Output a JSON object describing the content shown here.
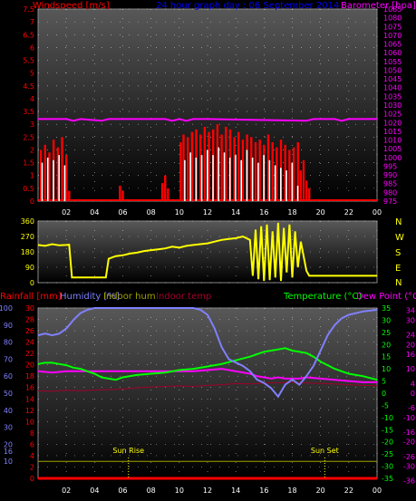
{
  "header": {
    "windspeed_label": "Windspeed [m/s]",
    "date_title": "24 hour graph day : 06 September 2014",
    "barometer_label": "Barometer [hpa]"
  },
  "direction_letters": [
    "N",
    "W",
    "S",
    "E",
    "N"
  ],
  "footer_labels": {
    "rainfall": "Rainfall [mm]",
    "humidity": "Humidity [%]",
    "indoor_hum": "Indoor hum",
    "indoor_temp": "Indoor temp",
    "temperature": "Temperature (°C)",
    "dew_point": "Dew Point (°C)"
  },
  "events": {
    "sunrise": "Sun Rise",
    "sunset": "Sun Set"
  },
  "colors": {
    "wind_avg": "#ff0000",
    "wind_gust": "#ffffff",
    "barometer": "#ff00ff",
    "direction": "#ffff00",
    "humidity": "#8080ff",
    "temperature": "#00ff00",
    "dewpoint": "#ff00ff",
    "indoor_temp": "#a0002a",
    "indoor_hum": "#a0a000",
    "rain": "#ff0000",
    "title": "#0000ff",
    "panel_top": "#555555",
    "panel_bottom": "#000000"
  },
  "chart_data": [
    {
      "type": "bar",
      "title": "24 hour graph day : 06 September 2014",
      "xlabel": "",
      "x_ticks": [
        "02",
        "04",
        "06",
        "08",
        "10",
        "12",
        "14",
        "16",
        "18",
        "20",
        "22",
        "00"
      ],
      "ylabel": "Windspeed [m/s]",
      "ylim": [
        0,
        7.5
      ],
      "y_ticks": [
        "0",
        "0.5",
        "1",
        "1.5",
        "2",
        "2.5",
        "3",
        "3.5",
        "4",
        "4.5",
        "5",
        "5.5",
        "6",
        "6.5",
        "7",
        "7.5"
      ],
      "y2label": "Barometer [hpa]",
      "y2lim": [
        975,
        1085
      ],
      "y2_ticks": [
        "975",
        "980",
        "985",
        "990",
        "995",
        "1000",
        "1005",
        "1010",
        "1015",
        "1020",
        "1025",
        "1030",
        "1035",
        "1040",
        "1045",
        "1050",
        "1055",
        "1060",
        "1065",
        "1070",
        "1075",
        "1080",
        "1085"
      ],
      "series": [
        {
          "name": "Windspeed",
          "kind": "wind_avg",
          "x": [
            0.2,
            0.5,
            0.8,
            1.1,
            1.4,
            1.7,
            2.0,
            2.2,
            5.8,
            6.0,
            8.8,
            9.0,
            9.2,
            10.1,
            10.3,
            10.6,
            10.9,
            11.2,
            11.5,
            11.8,
            12.1,
            12.4,
            12.7,
            13.0,
            13.3,
            13.6,
            13.9,
            14.2,
            14.5,
            14.8,
            15.1,
            15.4,
            15.7,
            16.0,
            16.3,
            16.6,
            16.9,
            17.2,
            17.5,
            17.8,
            18.1,
            18.4,
            18.6,
            18.8,
            19.0,
            19.2
          ],
          "values": [
            2.0,
            2.2,
            1.9,
            2.4,
            2.1,
            2.5,
            1.8,
            0.4,
            0.6,
            0.4,
            0.7,
            1.0,
            0.5,
            2.3,
            2.6,
            2.5,
            2.7,
            2.8,
            2.6,
            2.9,
            2.7,
            2.8,
            3.0,
            2.6,
            2.9,
            2.8,
            2.5,
            2.7,
            2.4,
            2.6,
            2.5,
            2.3,
            2.4,
            2.2,
            2.6,
            2.3,
            2.1,
            2.4,
            2.2,
            2.0,
            2.1,
            2.3,
            1.2,
            1.6,
            0.8,
            0.5
          ]
        },
        {
          "name": "Gust",
          "kind": "wind_gust",
          "x": [
            0.3,
            0.7,
            1.1,
            1.5,
            1.9,
            10.4,
            10.8,
            11.2,
            11.6,
            12.0,
            12.4,
            12.8,
            13.2,
            13.6,
            14.0,
            14.4,
            14.8,
            15.2,
            15.6,
            16.0,
            16.4,
            16.8,
            17.2,
            17.6,
            18.0,
            18.4
          ],
          "values": [
            1.5,
            1.7,
            1.6,
            1.8,
            1.4,
            1.6,
            1.9,
            1.7,
            1.8,
            2.0,
            1.8,
            2.1,
            1.9,
            1.7,
            1.8,
            1.6,
            2.0,
            1.7,
            1.5,
            1.8,
            1.6,
            1.4,
            1.3,
            1.2,
            1.5,
            0.6
          ]
        },
        {
          "name": "Barometer",
          "kind": "barometer",
          "x": [
            0,
            2,
            2.5,
            3,
            4.5,
            5,
            9,
            9.5,
            10,
            10.5,
            11,
            11.5,
            12,
            19,
            19.5,
            20,
            21,
            21.5,
            22,
            24
          ],
          "values": [
            1022,
            1022,
            1021,
            1022,
            1021,
            1022,
            1022,
            1021,
            1022,
            1021,
            1022,
            1022,
            1022,
            1021,
            1022,
            1022,
            1022,
            1021,
            1022,
            1022
          ]
        }
      ]
    },
    {
      "type": "line",
      "title": "",
      "ylabel": "",
      "ylim": [
        0,
        360
      ],
      "y_ticks": [
        "0",
        "90",
        "180",
        "270",
        "360"
      ],
      "series": [
        {
          "name": "Wind direction",
          "kind": "direction",
          "x": [
            0,
            0.5,
            1,
            1.5,
            2,
            2.2,
            2.4,
            4.8,
            5,
            5.5,
            6,
            6.5,
            7,
            7.5,
            8,
            8.5,
            9,
            9.5,
            10,
            10.5,
            11,
            11.5,
            12,
            12.5,
            13,
            13.5,
            14,
            14.5,
            15,
            15.2,
            15.4,
            15.6,
            15.8,
            16,
            16.2,
            16.4,
            16.6,
            16.8,
            17,
            17.2,
            17.4,
            17.6,
            17.8,
            18,
            18.2,
            18.4,
            18.6,
            19,
            19.2,
            21,
            24
          ],
          "values": [
            220,
            215,
            225,
            218,
            220,
            222,
            30,
            30,
            140,
            155,
            160,
            170,
            175,
            185,
            190,
            195,
            200,
            210,
            205,
            215,
            220,
            225,
            230,
            240,
            250,
            255,
            260,
            270,
            250,
            40,
            310,
            20,
            330,
            10,
            340,
            15,
            300,
            30,
            350,
            10,
            320,
            60,
            340,
            30,
            300,
            90,
            240,
            70,
            40,
            40,
            40
          ]
        }
      ]
    },
    {
      "type": "line",
      "title": "",
      "x_ticks": [
        "02",
        "04",
        "06",
        "08",
        "10",
        "12",
        "14",
        "16",
        "18",
        "20",
        "22",
        "00"
      ],
      "y_left_ticks": [
        "10",
        "16",
        "20",
        "30",
        "40",
        "50",
        "60",
        "70",
        "80",
        "90",
        "100"
      ],
      "y_left2_ticks": [
        "0",
        "2",
        "4",
        "6",
        "8",
        "10",
        "12",
        "14",
        "16",
        "18",
        "20",
        "22",
        "24",
        "26",
        "28",
        "30"
      ],
      "y_right_ticks": [
        "-35",
        "-30",
        "-25",
        "-20",
        "-15",
        "-10",
        "-5",
        "0",
        "5",
        "10",
        "15",
        "20",
        "25",
        "30",
        "35"
      ],
      "y_right2_ticks": [
        "-36",
        "-30",
        "-26",
        "-20",
        "-16",
        "-10",
        "-6",
        "0",
        "4",
        "10",
        "16",
        "20",
        "24",
        "30",
        "34"
      ],
      "ylim_humidity": [
        0,
        100
      ],
      "ylim_rain": [
        0,
        30
      ],
      "ylim_temp": [
        -35,
        35
      ],
      "series": [
        {
          "name": "Humidity [%]",
          "kind": "humidity",
          "x": [
            0,
            0.5,
            1,
            1.5,
            2,
            2.5,
            3,
            3.5,
            4,
            5,
            6,
            8,
            10,
            11,
            11.5,
            12,
            12.5,
            13,
            13.5,
            14,
            14.5,
            15,
            15.5,
            16,
            16.5,
            17,
            17.5,
            18,
            18.5,
            19,
            19.5,
            20,
            20.5,
            21,
            21.5,
            22,
            23,
            24
          ],
          "values": [
            84,
            85,
            84,
            85,
            88,
            93,
            97,
            99,
            100,
            100,
            100,
            100,
            100,
            100,
            99,
            96,
            88,
            77,
            70,
            68,
            66,
            63,
            58,
            56,
            53,
            48,
            55,
            58,
            55,
            60,
            66,
            75,
            84,
            90,
            94,
            96,
            98,
            99
          ]
        },
        {
          "name": "Temperature (°C)",
          "kind": "temperature",
          "x": [
            0,
            0.5,
            1,
            1.5,
            2,
            2.5,
            3,
            3.5,
            4,
            4.5,
            5,
            5.5,
            6,
            7,
            8,
            9,
            10,
            11,
            12,
            13,
            14,
            15,
            16,
            16.5,
            17,
            17.5,
            18,
            18.5,
            19,
            19.5,
            20,
            21,
            22,
            23,
            24
          ],
          "values": [
            12,
            12.5,
            12.5,
            12,
            11.5,
            10.5,
            10,
            9,
            8,
            6.5,
            6,
            5.5,
            6.5,
            7.5,
            8,
            8.5,
            9.5,
            10,
            11,
            12,
            13.5,
            15,
            17,
            17.5,
            18,
            18.5,
            17.5,
            17,
            16.5,
            15,
            13,
            10,
            8,
            7,
            5.5
          ]
        },
        {
          "name": "Dew Point (°C)",
          "kind": "dewpoint",
          "x": [
            0,
            1,
            2,
            3,
            4,
            5,
            6,
            8,
            10,
            11,
            12,
            13,
            14,
            15,
            15.5,
            16,
            16.5,
            17,
            17.5,
            18,
            18.5,
            19,
            20,
            21,
            22,
            23,
            24
          ],
          "values": [
            9,
            8.5,
            9,
            9,
            9,
            9,
            9,
            9,
            9,
            9,
            9.5,
            10,
            9,
            8,
            7,
            6.5,
            6,
            6.5,
            6,
            6,
            6,
            6.5,
            6,
            5.5,
            5,
            4.5,
            4.5
          ]
        },
        {
          "name": "Indoor temp",
          "kind": "indoor_temp",
          "x": [
            0,
            1,
            2,
            3,
            4,
            5,
            6,
            7,
            8,
            9,
            10,
            11,
            12,
            13,
            14,
            15,
            16,
            17,
            18,
            19,
            20,
            21,
            22,
            23,
            24
          ],
          "values": [
            1,
            0.8,
            1.2,
            1,
            1.3,
            1.5,
            1.7,
            2.2,
            2.5,
            2.8,
            3,
            2.8,
            3.2,
            3.5,
            4,
            3.8,
            4.2,
            4.3,
            4.5,
            4.2,
            4,
            3.8,
            3.5,
            3.2,
            3
          ]
        },
        {
          "name": "Indoor hum",
          "kind": "indoor_hum",
          "x": [
            0,
            6,
            12,
            18,
            24
          ],
          "values": [
            10,
            10,
            10,
            10,
            10
          ]
        },
        {
          "name": "Rainfall [mm]",
          "kind": "rain",
          "x": [
            0,
            24
          ],
          "values": [
            0,
            0
          ]
        }
      ],
      "markers": [
        {
          "label": "Sun Rise",
          "x": 6.4
        },
        {
          "label": "Sun Set",
          "x": 20.3
        }
      ]
    }
  ]
}
